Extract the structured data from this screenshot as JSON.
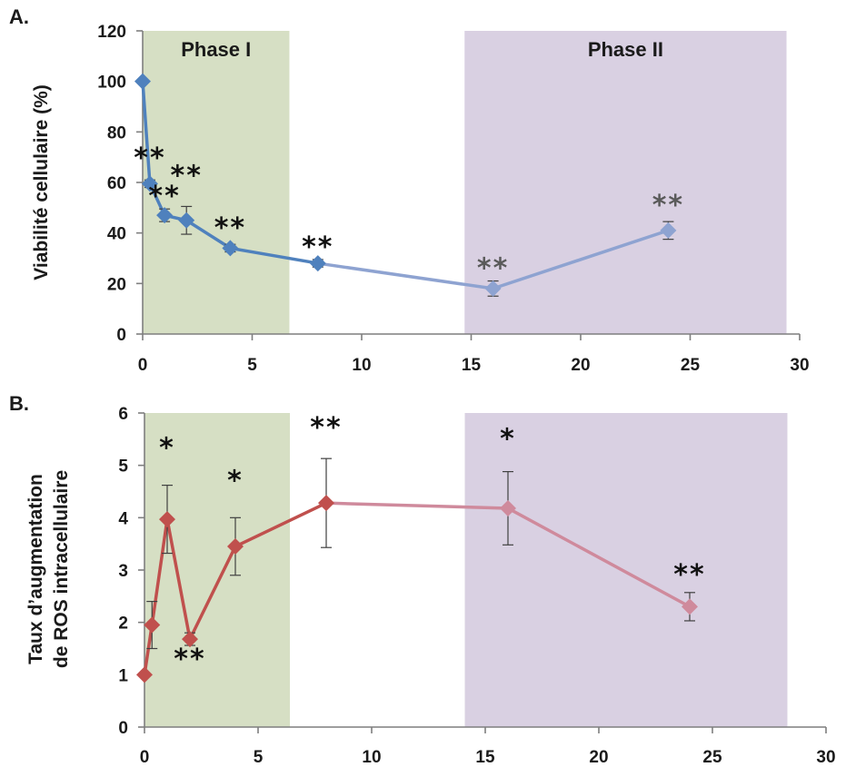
{
  "chart_data": [
    {
      "type": "line",
      "panel_label": "A.",
      "ylabel": "Viabilité cellulaire (%)",
      "xlim": [
        0,
        30
      ],
      "ylim": [
        0,
        120
      ],
      "xticks": [
        0,
        5,
        10,
        15,
        20,
        25,
        30
      ],
      "yticks": [
        0,
        20,
        40,
        60,
        80,
        100,
        120
      ],
      "grid": false,
      "phases": [
        {
          "label": "Phase I",
          "x_start": 0,
          "x_end": 6.7,
          "color": "#d6dfc4"
        },
        {
          "label": "Phase II",
          "x_start": 14.7,
          "x_end": 29.4,
          "color": "#d9d0e2"
        }
      ],
      "series": [
        {
          "colors": [
            "#4f81bd",
            "#8ea3d1"
          ],
          "points": [
            {
              "x": 0,
              "y": 100,
              "err": 0,
              "sig": ""
            },
            {
              "x": 0.33,
              "y": 59.5,
              "err": 1.5,
              "sig": "**"
            },
            {
              "x": 1,
              "y": 47,
              "err": 2.5,
              "sig": "**"
            },
            {
              "x": 2,
              "y": 45,
              "err": 5.5,
              "sig": "**"
            },
            {
              "x": 4,
              "y": 34,
              "err": 1.5,
              "sig": "**"
            },
            {
              "x": 8,
              "y": 28,
              "err": 1.5,
              "sig": "**"
            },
            {
              "x": 16,
              "y": 18,
              "err": 3,
              "sig": "**"
            },
            {
              "x": 24,
              "y": 41,
              "err": 3.5,
              "sig": "**"
            }
          ]
        }
      ]
    },
    {
      "type": "line",
      "panel_label": "B.",
      "ylabel": "Taux d'augmentation de ROS intracellulaire",
      "ylabel_lines": [
        "Taux d’augmentation",
        "de ROS intracellulaire"
      ],
      "xlim": [
        0,
        30
      ],
      "ylim": [
        0,
        6
      ],
      "xticks": [
        0,
        5,
        10,
        15,
        20,
        25,
        30
      ],
      "yticks": [
        0,
        1,
        2,
        3,
        4,
        5,
        6
      ],
      "grid": false,
      "phases": [
        {
          "label": "",
          "x_start": 0,
          "x_end": 6.4,
          "color": "#d6dfc4"
        },
        {
          "label": "",
          "x_start": 14.1,
          "x_end": 28.3,
          "color": "#d9d0e2"
        }
      ],
      "series": [
        {
          "colors": [
            "#c0504d",
            "#cf8a9c"
          ],
          "points": [
            {
              "x": 0,
              "y": 1.0,
              "err": 0,
              "sig": ""
            },
            {
              "x": 0.33,
              "y": 1.95,
              "err": 0.45,
              "sig": ""
            },
            {
              "x": 1,
              "y": 3.97,
              "err": 0.65,
              "sig": "*"
            },
            {
              "x": 2,
              "y": 1.68,
              "err": 0.12,
              "sig": "**"
            },
            {
              "x": 4,
              "y": 3.45,
              "err": 0.55,
              "sig": "*"
            },
            {
              "x": 8,
              "y": 4.28,
              "err": 0.85,
              "sig": "**"
            },
            {
              "x": 16,
              "y": 4.18,
              "err": 0.7,
              "sig": "*"
            },
            {
              "x": 24,
              "y": 2.3,
              "err": 0.27,
              "sig": "**"
            }
          ]
        }
      ]
    }
  ]
}
